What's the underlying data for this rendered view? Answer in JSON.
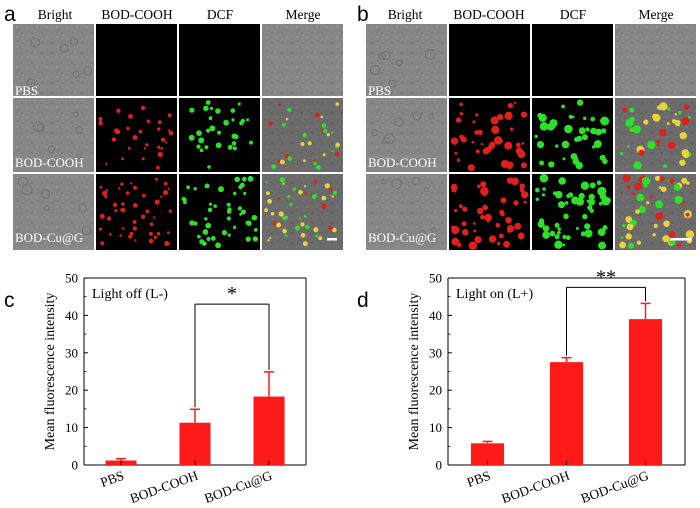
{
  "figure": {
    "panels": {
      "a": {
        "letter": "a",
        "columns": [
          "Bright",
          "BOD-COOH",
          "DCF",
          "Merge"
        ],
        "rows": [
          "PBS",
          "BOD-COOH",
          "BOD-Cu@G"
        ]
      },
      "b": {
        "letter": "b",
        "columns": [
          "Bright",
          "BOD-COOH",
          "DCF",
          "Merge"
        ],
        "rows": [
          "PBS",
          "BOD-COOH",
          "BOD-Cu@G"
        ]
      }
    },
    "colors": {
      "bar": "#ff1a1a",
      "red_cells": "#e0201c",
      "green_cells": "#2ee02a",
      "yellow_cells": "#e8d43a",
      "bright_field": "#8e8e8e",
      "scale_bar": "#ffffff"
    }
  },
  "chart_data": [
    {
      "panel": "c",
      "type": "bar",
      "annotation": "Light off (L-)",
      "ylabel": "Mean fluorescence intensity",
      "xlabel": "",
      "categories": [
        "PBS",
        "BOD-COOH",
        "BOD-Cu@G"
      ],
      "values": [
        1.2,
        11.3,
        18.3
      ],
      "errors": [
        0.5,
        3.6,
        6.6
      ],
      "ylim": [
        0,
        50
      ],
      "yticks": [
        0,
        10,
        20,
        30,
        40,
        50
      ],
      "significance": {
        "between": [
          "BOD-COOH",
          "BOD-Cu@G"
        ],
        "label": "*"
      }
    },
    {
      "panel": "d",
      "type": "bar",
      "annotation": "Light on (L+)",
      "ylabel": "Mean fluorescence intensity",
      "xlabel": "",
      "categories": [
        "PBS",
        "BOD-COOH",
        "BOD-Cu@G"
      ],
      "values": [
        5.8,
        27.5,
        39.0
      ],
      "errors": [
        0.5,
        1.2,
        4.2
      ],
      "ylim": [
        0,
        50
      ],
      "yticks": [
        0,
        10,
        20,
        30,
        40,
        50
      ],
      "significance": {
        "between": [
          "BOD-COOH",
          "BOD-Cu@G"
        ],
        "label": "**"
      }
    }
  ]
}
